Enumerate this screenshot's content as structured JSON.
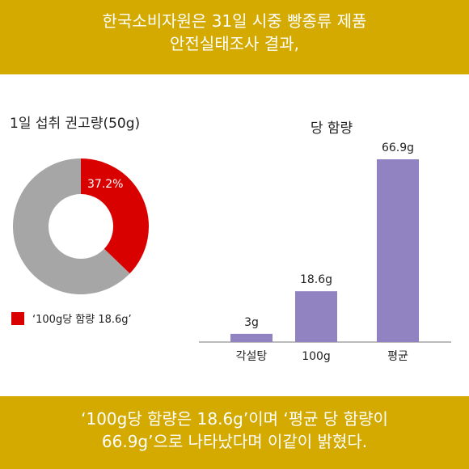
{
  "header": {
    "line1": "한국소비자원은 31일 시중 빵종류 제품",
    "line2": "안전실태조사 결과,"
  },
  "footer": {
    "line1": "‘100g당 함량은 18.6g’이며 ‘평균 당 함량이",
    "line2": "66.9g’으로 나타났다며 이같이 밝혔다."
  },
  "colors": {
    "banner": "#d4aa00",
    "donut_highlight": "#d90000",
    "donut_rest": "#a6a6a6",
    "bar": "#9183c1"
  },
  "chart_data": [
    {
      "type": "pie",
      "title": "1일 섭취 권고량(50g)",
      "slices": [
        {
          "name": "‘100g당 함량 18.6g’",
          "value": 37.2,
          "label": "37.2%"
        },
        {
          "name": "",
          "value": 62.8,
          "label": ""
        }
      ],
      "legend": [
        "‘100g당 함량 18.6g’"
      ],
      "legend_position": "bottom-left"
    },
    {
      "type": "bar",
      "title": "당 함량",
      "categories": [
        "각설탕",
        "100g",
        "평균"
      ],
      "values": [
        3,
        18.6,
        66.9
      ],
      "value_labels": [
        "3g",
        "18.6g",
        "66.9g"
      ],
      "xlabel": "",
      "ylabel": "",
      "ylim": [
        0,
        66.9
      ],
      "grid": false
    }
  ]
}
